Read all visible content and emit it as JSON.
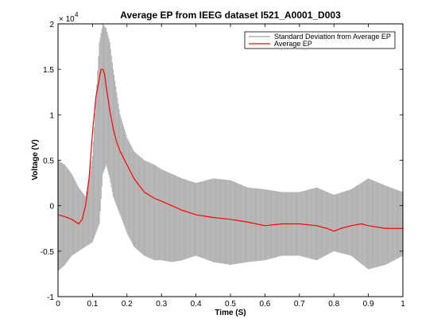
{
  "chart_data": {
    "type": "line",
    "title": "Average EP from IEEG dataset I521_A0001_D003",
    "xlabel": "Time (S)",
    "ylabel": "Voltage (V)",
    "xlim": [
      0,
      1
    ],
    "ylim": [
      -1,
      2
    ],
    "y_multiplier_label": "× 10",
    "y_multiplier_exponent": "4",
    "x_ticks": [
      "0",
      "0.1",
      "0.2",
      "0.3",
      "0.4",
      "0.5",
      "0.6",
      "0.7",
      "0.8",
      "0.9",
      "1"
    ],
    "y_ticks": [
      "-1",
      "-0.5",
      "0",
      "0.5",
      "1",
      "1.5",
      "2"
    ],
    "legend_position": "top-right",
    "grid": false,
    "series": [
      {
        "name": "Standard Deviation from Average EP",
        "color": "#b3b3b3",
        "style": "band",
        "x": [
          0,
          0.02,
          0.04,
          0.06,
          0.08,
          0.1,
          0.12,
          0.13,
          0.14,
          0.15,
          0.16,
          0.18,
          0.2,
          0.22,
          0.25,
          0.28,
          0.3,
          0.33,
          0.36,
          0.4,
          0.45,
          0.5,
          0.55,
          0.6,
          0.65,
          0.7,
          0.75,
          0.8,
          0.85,
          0.9,
          0.95,
          1.0
        ],
        "upper": [
          0.5,
          0.45,
          0.35,
          0.2,
          0.1,
          0.55,
          1.8,
          2.0,
          1.95,
          1.8,
          1.5,
          1.0,
          0.75,
          0.6,
          0.5,
          0.45,
          0.4,
          0.35,
          0.3,
          0.25,
          0.3,
          0.28,
          0.2,
          0.18,
          0.15,
          0.15,
          0.2,
          0.12,
          0.18,
          0.3,
          0.22,
          0.15
        ],
        "lower": [
          -0.72,
          -0.65,
          -0.55,
          -0.5,
          -0.45,
          -0.4,
          -0.2,
          0.35,
          0.45,
          0.3,
          0.1,
          -0.1,
          -0.3,
          -0.45,
          -0.55,
          -0.6,
          -0.6,
          -0.62,
          -0.6,
          -0.55,
          -0.62,
          -0.65,
          -0.62,
          -0.6,
          -0.55,
          -0.55,
          -0.6,
          -0.5,
          -0.55,
          -0.7,
          -0.65,
          -0.55
        ]
      },
      {
        "name": "Average EP",
        "color": "#ff0000",
        "style": "line",
        "x": [
          0,
          0.02,
          0.04,
          0.06,
          0.07,
          0.08,
          0.09,
          0.1,
          0.11,
          0.12,
          0.125,
          0.13,
          0.135,
          0.14,
          0.15,
          0.16,
          0.17,
          0.18,
          0.2,
          0.22,
          0.25,
          0.28,
          0.3,
          0.33,
          0.36,
          0.4,
          0.45,
          0.5,
          0.55,
          0.6,
          0.65,
          0.7,
          0.75,
          0.78,
          0.8,
          0.82,
          0.85,
          0.88,
          0.9,
          0.95,
          1.0
        ],
        "y": [
          -0.1,
          -0.12,
          -0.15,
          -0.2,
          -0.15,
          0.0,
          0.3,
          0.8,
          1.2,
          1.4,
          1.5,
          1.5,
          1.45,
          1.3,
          1.05,
          0.85,
          0.7,
          0.6,
          0.45,
          0.3,
          0.15,
          0.08,
          0.05,
          0.0,
          -0.05,
          -0.1,
          -0.13,
          -0.15,
          -0.18,
          -0.22,
          -0.2,
          -0.2,
          -0.22,
          -0.25,
          -0.28,
          -0.25,
          -0.22,
          -0.2,
          -0.22,
          -0.25,
          -0.25
        ]
      }
    ]
  }
}
